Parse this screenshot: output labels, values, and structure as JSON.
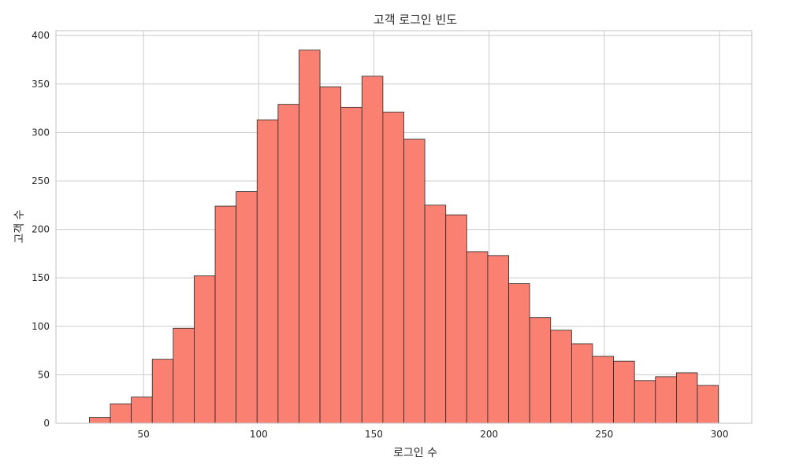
{
  "chart_data": {
    "type": "bar",
    "title": "고객 로그인 빈도",
    "xlabel": "로그인 수",
    "ylabel": "고객 수",
    "xlim": [
      12,
      314
    ],
    "ylim": [
      0,
      405
    ],
    "x_ticks": [
      50,
      100,
      150,
      200,
      250,
      300
    ],
    "y_ticks": [
      0,
      50,
      100,
      150,
      200,
      250,
      300,
      350,
      400
    ],
    "grid": true,
    "bar_color": "#fa8072",
    "edge_color": "#262626",
    "bin_width": 9.1,
    "bins": [
      {
        "start": 26.5,
        "count": 6
      },
      {
        "start": 35.6,
        "count": 20
      },
      {
        "start": 44.7,
        "count": 27
      },
      {
        "start": 53.8,
        "count": 66
      },
      {
        "start": 62.9,
        "count": 98
      },
      {
        "start": 72.0,
        "count": 152
      },
      {
        "start": 81.1,
        "count": 224
      },
      {
        "start": 90.2,
        "count": 239
      },
      {
        "start": 99.3,
        "count": 313
      },
      {
        "start": 108.4,
        "count": 329
      },
      {
        "start": 117.5,
        "count": 385
      },
      {
        "start": 126.6,
        "count": 347
      },
      {
        "start": 135.7,
        "count": 326
      },
      {
        "start": 144.8,
        "count": 358
      },
      {
        "start": 153.9,
        "count": 321
      },
      {
        "start": 163.0,
        "count": 293
      },
      {
        "start": 172.1,
        "count": 225
      },
      {
        "start": 181.2,
        "count": 215
      },
      {
        "start": 190.3,
        "count": 177
      },
      {
        "start": 199.4,
        "count": 173
      },
      {
        "start": 208.5,
        "count": 144
      },
      {
        "start": 217.6,
        "count": 109
      },
      {
        "start": 226.7,
        "count": 96
      },
      {
        "start": 235.8,
        "count": 82
      },
      {
        "start": 244.9,
        "count": 69
      },
      {
        "start": 254.0,
        "count": 64
      },
      {
        "start": 263.1,
        "count": 44
      },
      {
        "start": 272.2,
        "count": 48
      },
      {
        "start": 281.3,
        "count": 52
      },
      {
        "start": 290.4,
        "count": 39
      }
    ]
  }
}
